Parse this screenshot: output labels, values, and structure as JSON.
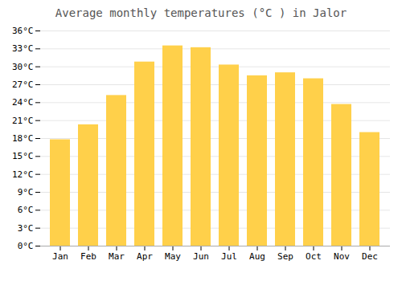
{
  "chart_data": {
    "type": "bar",
    "title": "Average monthly temperatures (°C ) in Jalor",
    "categories": [
      "Jan",
      "Feb",
      "Mar",
      "Apr",
      "May",
      "Jun",
      "Jul",
      "Aug",
      "Sep",
      "Oct",
      "Nov",
      "Dec"
    ],
    "values": [
      17.8,
      20.3,
      25.2,
      30.8,
      33.5,
      33.2,
      30.3,
      28.5,
      29.0,
      28.0,
      23.7,
      19.0
    ],
    "color": "#FFD04A",
    "ylim": [
      0,
      36
    ],
    "yticks": [
      {
        "value": 0,
        "label": "0°C"
      },
      {
        "value": 3,
        "label": "3°C"
      },
      {
        "value": 6,
        "label": "6°C"
      },
      {
        "value": 9,
        "label": "9°C"
      },
      {
        "value": 12,
        "label": "12°C"
      },
      {
        "value": 15,
        "label": "15°C"
      },
      {
        "value": 18,
        "label": "18°C"
      },
      {
        "value": 21,
        "label": "21°C"
      },
      {
        "value": 24,
        "label": "24°C"
      },
      {
        "value": 27,
        "label": "27°C"
      },
      {
        "value": 30,
        "label": "30°C"
      },
      {
        "value": 33,
        "label": "33°C"
      },
      {
        "value": 36,
        "label": "36°C"
      }
    ],
    "grid": true
  }
}
